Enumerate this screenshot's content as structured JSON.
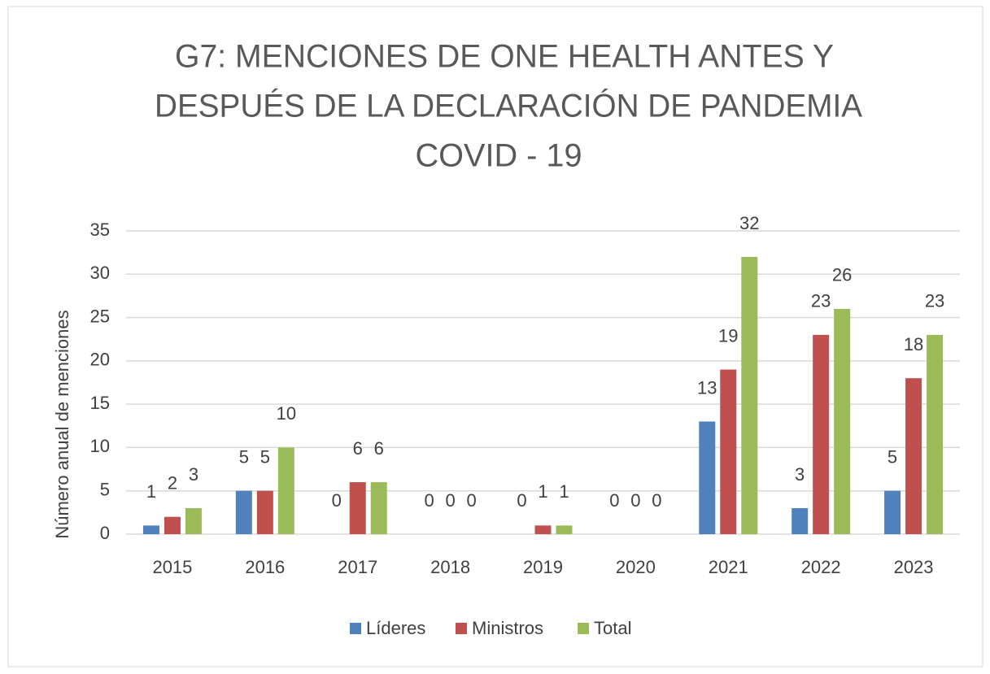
{
  "chart_data": {
    "type": "bar",
    "title": [
      "G7: MENCIONES DE ONE HEALTH ANTES Y",
      "DESPUÉS DE LA DECLARACIÓN DE PANDEMIA",
      "COVID - 19"
    ],
    "y_label": "Número anual de menciones",
    "categories": [
      "2015",
      "2016",
      "2017",
      "2018",
      "2019",
      "2020",
      "2021",
      "2022",
      "2023"
    ],
    "series": [
      {
        "name": "Líderes",
        "color": "#4f81bd",
        "values": [
          1,
          5,
          0,
          0,
          0,
          0,
          13,
          3,
          5
        ]
      },
      {
        "name": "Ministros",
        "color": "#c0504d",
        "values": [
          2,
          5,
          6,
          0,
          1,
          0,
          19,
          23,
          18
        ]
      },
      {
        "name": "Total",
        "color": "#9bbb59",
        "values": [
          3,
          10,
          6,
          0,
          1,
          0,
          32,
          26,
          23
        ]
      }
    ],
    "ylim": [
      0,
      35
    ],
    "yticks": [
      0,
      5,
      10,
      15,
      20,
      25,
      30,
      35
    ],
    "grid": true,
    "legend": "bottom"
  }
}
